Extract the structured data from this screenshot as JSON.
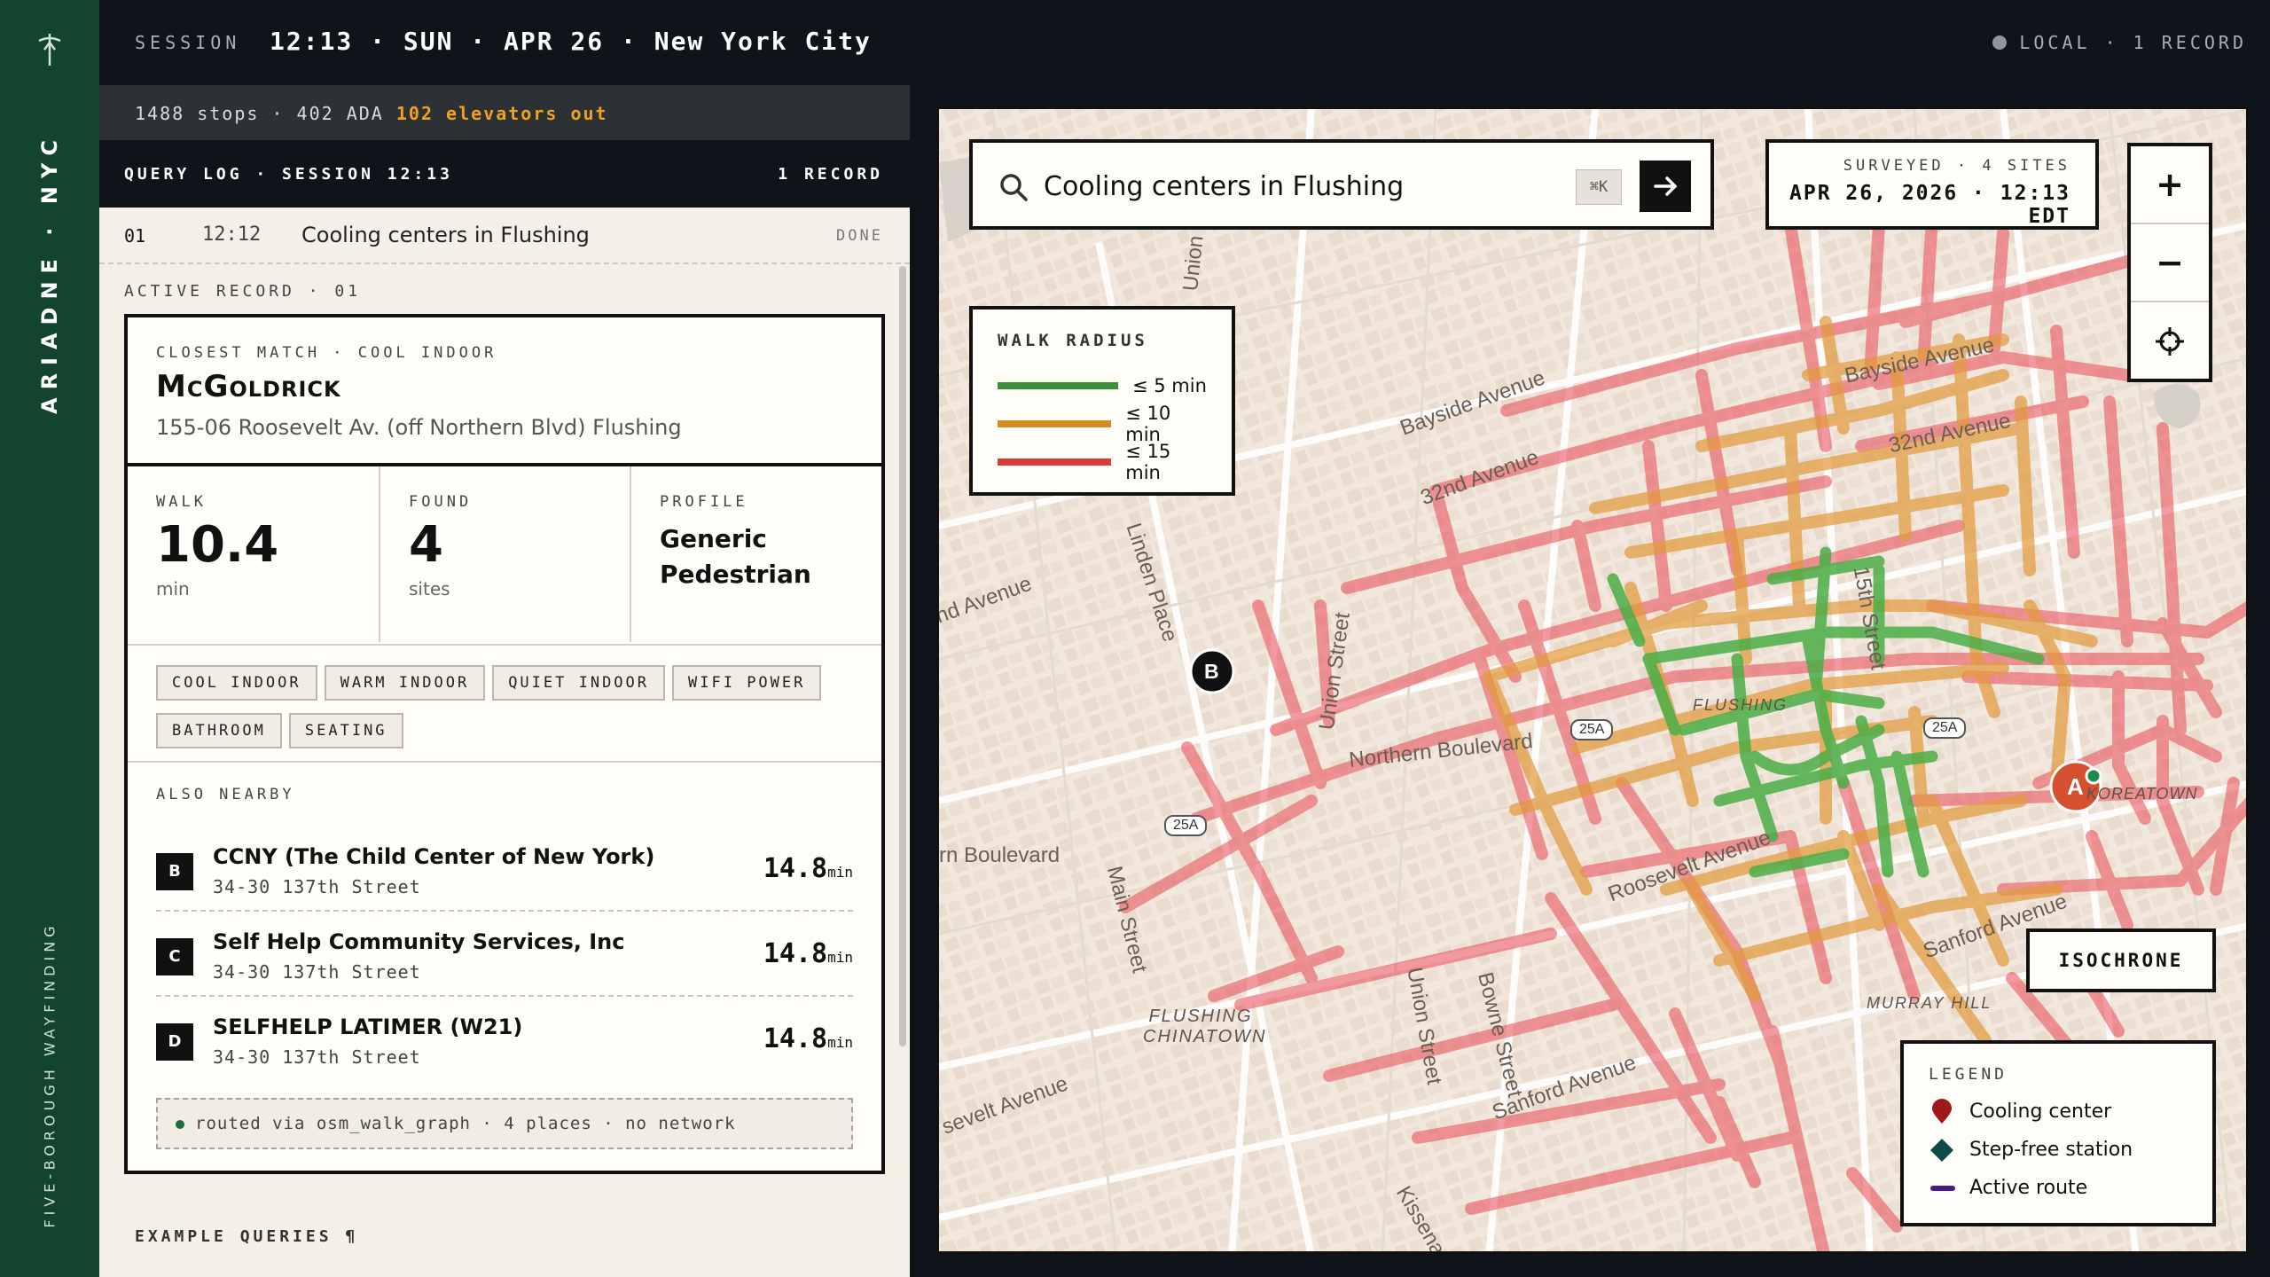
{
  "rail": {
    "brand": "ARIADNE · NYC",
    "tagline": "FIVE-BOROUGH WAYFINDING",
    "logo_icon": "compass-needle-icon"
  },
  "topbar": {
    "session_label": "SESSION",
    "session_time": "12:13 · SUN · APR 26 · New York City",
    "status": "LOCAL · 1 RECORD"
  },
  "stats": {
    "summary": "1488 stops · 402 ADA",
    "alert": "102 elevators out"
  },
  "query_log": {
    "title": "QUERY LOG · SESSION 12:13",
    "count": "1 RECORD",
    "entries": [
      {
        "num": "01",
        "time": "12:12",
        "query": "Cooling centers in Flushing",
        "status": "DONE"
      }
    ]
  },
  "active_record": {
    "label": "ACTIVE RECORD · 01",
    "match_label": "CLOSEST MATCH · COOL INDOOR",
    "name": "McGoldrick",
    "address": "155-06 Roosevelt Av. (off Northern Blvd) Flushing",
    "metrics": {
      "walk": {
        "label": "WALK",
        "value": "10.4",
        "unit": "min"
      },
      "found": {
        "label": "FOUND",
        "value": "4",
        "unit": "sites"
      },
      "profile": {
        "label": "PROFILE",
        "value": "Generic Pedestrian"
      }
    },
    "tags": [
      "COOL INDOOR",
      "WARM INDOOR",
      "QUIET INDOOR",
      "WIFI POWER",
      "BATHROOM",
      "SEATING"
    ],
    "nearby_label": "ALSO NEARBY",
    "nearby": [
      {
        "badge": "B",
        "name": "CCNY (The Child Center of New York)",
        "address": "34-30 137th Street",
        "distance": "14.8",
        "unit": "min"
      },
      {
        "badge": "C",
        "name": "Self Help Community Services, Inc",
        "address": "34-30 137th Street",
        "distance": "14.8",
        "unit": "min"
      },
      {
        "badge": "D",
        "name": "SELFHELP LATIMER (W21)",
        "address": "34-30 137th Street",
        "distance": "14.8",
        "unit": "min"
      }
    ],
    "routed_note": "routed via osm_walk_graph · 4 places · no network"
  },
  "examples_label": "EXAMPLE QUERIES ¶",
  "map": {
    "search": {
      "value": "Cooling centers in Flushing",
      "shortcut": "⌘K"
    },
    "surveyed": {
      "line1": "SURVEYED · 4 SITES",
      "line2": "APR 26, 2026 · 12:13 EDT"
    },
    "zoom": {
      "in": "+",
      "out": "−"
    },
    "walk_radius": {
      "title": "WALK RADIUS",
      "bands": [
        {
          "label": "≤ 5 min",
          "color": "#3a8f3a"
        },
        {
          "label": "≤ 10 min",
          "color": "#d98a22"
        },
        {
          "label": "≤ 15 min",
          "color": "#d93a3a"
        }
      ]
    },
    "isochrone_button": "ISOCHRONE",
    "legend": {
      "title": "LEGEND",
      "items": [
        {
          "label": "Cooling center",
          "icon": "map-pin-icon",
          "color": "#9e1a1a"
        },
        {
          "label": "Step-free station",
          "icon": "diamond-icon",
          "color": "#0e4a4a"
        },
        {
          "label": "Active route",
          "icon": "route-line-icon",
          "color": "#4a1a8a"
        }
      ]
    },
    "markers": [
      {
        "label": "A",
        "color": "#d5502e"
      },
      {
        "label": "B",
        "color": "#111111"
      }
    ],
    "street_labels": [
      "Bayside Avenue",
      "Bayside Avenue",
      "32nd Avenue",
      "32nd Avenue",
      "Linden Place",
      "Union Street",
      "Union Street",
      "15th Street",
      "Northern Boulevard",
      "Roosevelt Avenue",
      "Main Street",
      "Bowne Street",
      "Sanford Avenue",
      "Sanford Avenue",
      "Kissena",
      "nd Avenue",
      "rn Boulevard",
      "sevelt Avenue",
      "Union",
      "FLUSHING",
      "FLUSHING CHINATOWN",
      "MURRAY HILL",
      "KOREATOWN",
      "25A",
      "25A",
      "25A"
    ]
  }
}
